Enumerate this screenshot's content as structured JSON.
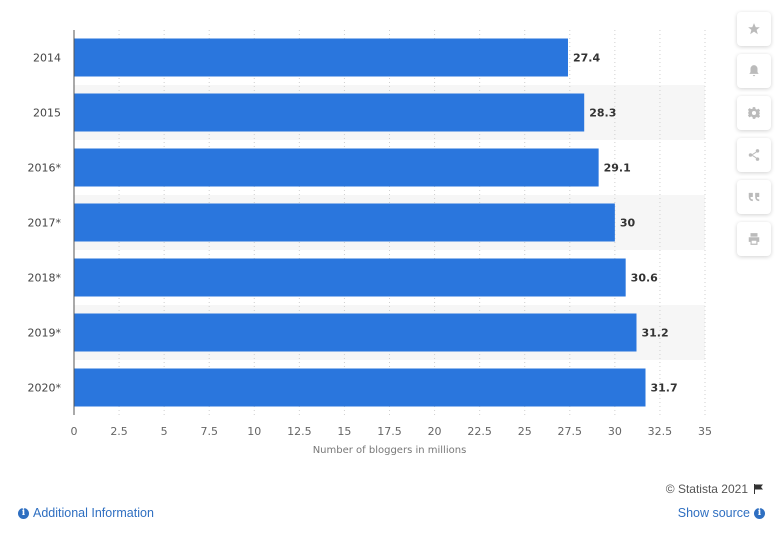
{
  "chart_data": {
    "type": "bar",
    "orientation": "horizontal",
    "categories": [
      "2014",
      "2015",
      "2016*",
      "2017*",
      "2018*",
      "2019*",
      "2020*"
    ],
    "values": [
      27.4,
      28.3,
      29.1,
      30,
      30.6,
      31.2,
      31.7
    ],
    "value_labels": [
      "27.4",
      "28.3",
      "29.1",
      "30",
      "30.6",
      "31.2",
      "31.7"
    ],
    "xticks": [
      "0",
      "2.5",
      "5",
      "7.5",
      "10",
      "12.5",
      "15",
      "17.5",
      "20",
      "22.5",
      "25",
      "27.5",
      "30",
      "32.5",
      "35"
    ],
    "xlim": [
      0,
      35
    ],
    "xlabel": "Number of bloggers in millions",
    "ylabel": "",
    "title": "",
    "bar_color": "#2a76dd",
    "grid": true
  },
  "footer": {
    "credit": "© Statista 2021",
    "additional_info": "Additional Information",
    "show_source": "Show source"
  },
  "toolbar": {
    "icons": [
      "star-icon",
      "bell-icon",
      "gear-icon",
      "share-icon",
      "quote-icon",
      "print-icon"
    ]
  },
  "colors": {
    "link": "#2f6fc1",
    "band": "#f6f6f6"
  }
}
